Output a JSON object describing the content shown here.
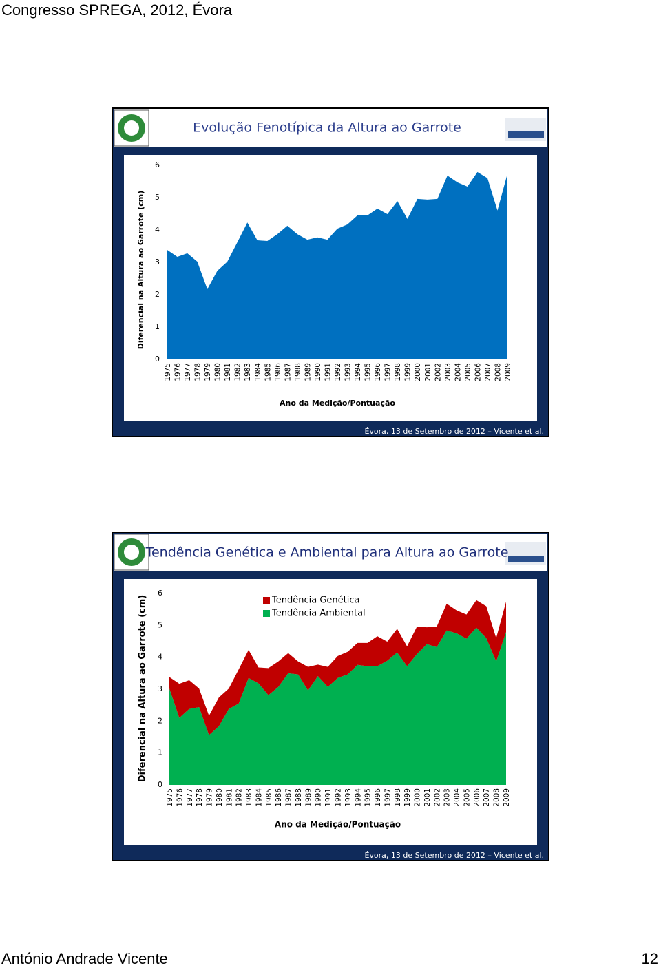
{
  "header": "Congresso SPREGA, 2012, Évora",
  "chart_data": [
    {
      "type": "area",
      "title": "Evolução Fenotípica da Altura ao Garrote",
      "categories": [
        "1975",
        "1976",
        "1977",
        "1978",
        "1979",
        "1980",
        "1981",
        "1982",
        "1983",
        "1984",
        "1985",
        "1986",
        "1987",
        "1988",
        "1989",
        "1990",
        "1991",
        "1992",
        "1993",
        "1994",
        "1995",
        "1996",
        "1997",
        "1998",
        "1999",
        "2000",
        "2001",
        "2002",
        "2003",
        "2004",
        "2005",
        "2006",
        "2007",
        "2008",
        "2009"
      ],
      "values": [
        3.38,
        3.17,
        3.28,
        3.02,
        2.17,
        2.74,
        3.02,
        3.62,
        4.23,
        3.68,
        3.66,
        3.87,
        4.13,
        3.87,
        3.7,
        3.77,
        3.7,
        4.04,
        4.17,
        4.45,
        4.45,
        4.66,
        4.49,
        4.89,
        4.34,
        4.96,
        4.94,
        4.96,
        5.68,
        5.47,
        5.34,
        5.79,
        5.6,
        4.6,
        5.74
      ],
      "color": "#0070c0",
      "ylim": [
        0,
        6
      ],
      "yticks": [
        0,
        1,
        2,
        3,
        4,
        5,
        6
      ],
      "xlabel": "Ano da Medição/Pontuação",
      "ylabel": "Diferencial na Altura ao Garrote (cm)",
      "note": "Évora, 13 de Setembro de 2012 – Vicente et al."
    },
    {
      "type": "stacked_area",
      "title": "Tendência Genética e Ambiental para Altura ao Garrote",
      "categories": [
        "1975",
        "1976",
        "1977",
        "1978",
        "1979",
        "1980",
        "1981",
        "1982",
        "1983",
        "1984",
        "1985",
        "1986",
        "1987",
        "1988",
        "1989",
        "1990",
        "1991",
        "1992",
        "1993",
        "1994",
        "1995",
        "1996",
        "1997",
        "1998",
        "1999",
        "2000",
        "2001",
        "2002",
        "2003",
        "2004",
        "2005",
        "2006",
        "2007",
        "2008",
        "2009"
      ],
      "series": [
        {
          "name": "Tendência Genética",
          "color": "#c00000",
          "values": [
            0.36,
            1.07,
            0.9,
            0.58,
            0.61,
            0.9,
            0.64,
            1.07,
            0.88,
            0.5,
            0.85,
            0.8,
            0.63,
            0.41,
            0.74,
            0.36,
            0.63,
            0.69,
            0.71,
            0.69,
            0.73,
            0.94,
            0.6,
            0.74,
            0.62,
            0.86,
            0.53,
            0.64,
            0.84,
            0.72,
            0.76,
            0.86,
            1.0,
            0.73,
            0.95
          ]
        },
        {
          "name": "Tendência Ambiental",
          "color": "#00b050",
          "values": [
            3.02,
            2.1,
            2.38,
            2.44,
            1.56,
            1.84,
            2.38,
            2.55,
            3.35,
            3.18,
            2.81,
            3.07,
            3.5,
            3.46,
            2.96,
            3.41,
            3.07,
            3.35,
            3.46,
            3.76,
            3.72,
            3.72,
            3.89,
            4.15,
            3.72,
            4.1,
            4.41,
            4.32,
            4.84,
            4.75,
            4.58,
            4.93,
            4.6,
            3.87,
            4.79
          ]
        }
      ],
      "ylim": [
        0,
        6
      ],
      "yticks": [
        0,
        1,
        2,
        3,
        4,
        5,
        6
      ],
      "xlabel": "Ano da Medição/Pontuação",
      "ylabel": "Diferencial na Altura ao Garrote (cm)",
      "note": "Évora, 13 de Setembro de 2012 – Vicente et al."
    }
  ],
  "footer": {
    "author": "António Andrade Vicente",
    "page": 12
  }
}
